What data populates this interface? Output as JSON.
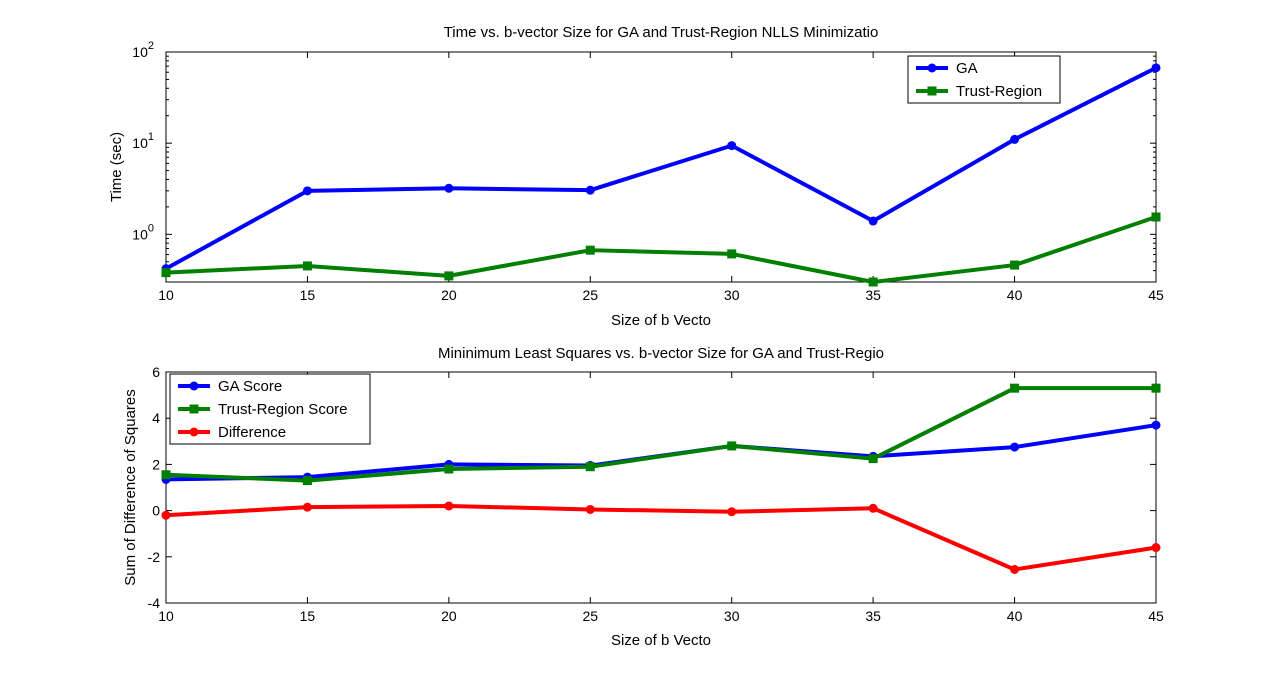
{
  "chart_data": [
    {
      "type": "line",
      "title": "Time vs. b-vector Size for GA and Trust-Region NLLS Minimizatio",
      "xlabel": "Size of b Vecto",
      "ylabel": "Time (sec)",
      "yscale": "log",
      "xlim": [
        10,
        45
      ],
      "ylim": [
        0.3,
        100
      ],
      "x": [
        10,
        15,
        20,
        25,
        30,
        35,
        40,
        45
      ],
      "xticks": [
        "10",
        "15",
        "20",
        "25",
        "30",
        "35",
        "40",
        "45"
      ],
      "yticks": [
        {
          "value": 1,
          "base": "10",
          "exp": "0"
        },
        {
          "value": 10,
          "base": "10",
          "exp": "1"
        },
        {
          "value": 100,
          "base": "10",
          "exp": "2"
        }
      ],
      "legend_position": "top-right",
      "grid": false,
      "series": [
        {
          "name": "GA",
          "color": "#0000ff",
          "marker": "circle",
          "values": [
            0.42,
            3.0,
            3.2,
            3.05,
            9.4,
            1.4,
            11.0,
            67.0
          ]
        },
        {
          "name": "Trust-Region",
          "color": "#007f00",
          "marker": "square",
          "values": [
            0.38,
            0.45,
            0.35,
            0.67,
            0.61,
            0.3,
            0.46,
            1.55
          ]
        }
      ]
    },
    {
      "type": "line",
      "title": "Mininimum Least Squares vs. b-vector Size for GA and Trust-Regio",
      "xlabel": "Size of b Vecto",
      "ylabel": "Sum of Difference of Squares",
      "xlim": [
        10,
        45
      ],
      "ylim": [
        -4,
        6
      ],
      "x": [
        10,
        15,
        20,
        25,
        30,
        35,
        40,
        45
      ],
      "xticks": [
        "10",
        "15",
        "20",
        "25",
        "30",
        "35",
        "40",
        "45"
      ],
      "yticks": [
        "-4",
        "-2",
        "0",
        "2",
        "4",
        "6"
      ],
      "legend_position": "top-left",
      "grid": false,
      "series": [
        {
          "name": "GA Score",
          "color": "#0000ff",
          "marker": "circle",
          "values": [
            1.35,
            1.45,
            2.0,
            1.95,
            2.8,
            2.35,
            2.75,
            3.7
          ]
        },
        {
          "name": "Trust-Region Score",
          "color": "#007f00",
          "marker": "square",
          "values": [
            1.55,
            1.3,
            1.8,
            1.9,
            2.8,
            2.25,
            5.3,
            5.3
          ]
        },
        {
          "name": "Difference",
          "color": "#ff0000",
          "marker": "circle",
          "values": [
            -0.2,
            0.15,
            0.2,
            0.05,
            -0.05,
            0.1,
            -2.55,
            -1.6
          ]
        }
      ]
    }
  ]
}
